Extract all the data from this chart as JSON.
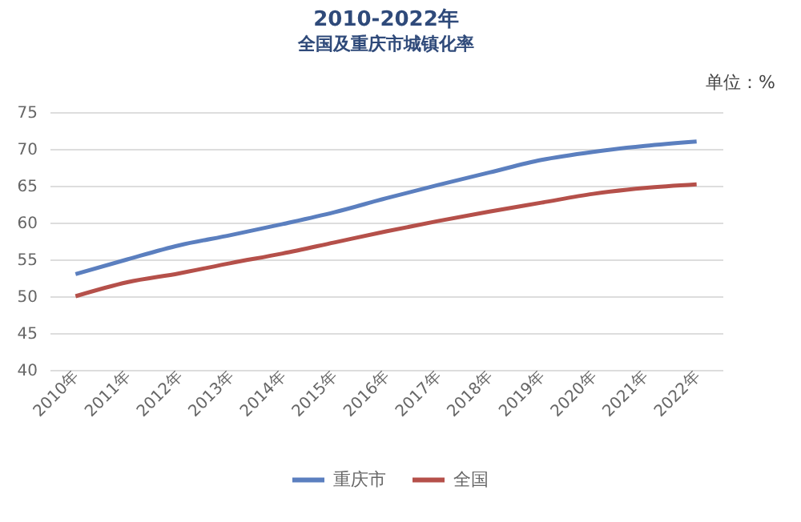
{
  "chart_data": {
    "type": "line",
    "title": "2010-2022年",
    "subtitle": "全国及重庆市城镇化率",
    "annotations": [
      "单位：%"
    ],
    "categories": [
      "2010年",
      "2011年",
      "2012年",
      "2013年",
      "2014年",
      "2015年",
      "2016年",
      "2017年",
      "2018年",
      "2019年",
      "2020年",
      "2021年",
      "2022年"
    ],
    "series": [
      {
        "name": "重庆市",
        "color": "#5b7fbf",
        "values": [
          53.0,
          55.0,
          56.9,
          58.3,
          59.8,
          61.4,
          63.3,
          65.1,
          66.8,
          68.5,
          69.6,
          70.4,
          71.0
        ]
      },
      {
        "name": "全国",
        "color": "#b5504a",
        "values": [
          50.0,
          51.9,
          53.1,
          54.5,
          55.8,
          57.3,
          58.8,
          60.2,
          61.5,
          62.7,
          63.9,
          64.7,
          65.2
        ]
      }
    ],
    "ylim": [
      40,
      75
    ],
    "yticks": [
      40,
      45,
      50,
      55,
      60,
      65,
      70,
      75
    ],
    "grid": "y",
    "legend": "bottom",
    "marker": "none",
    "line_style": "solid"
  }
}
